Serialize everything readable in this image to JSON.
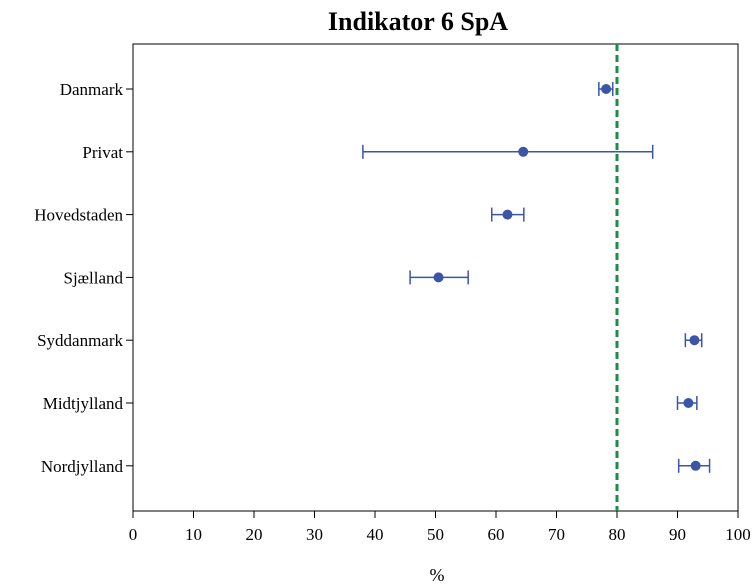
{
  "chart_data": {
    "type": "scatter",
    "title": "Indikator 6 SpA",
    "xlabel": "%",
    "ylabel": "",
    "xlim": [
      0,
      100
    ],
    "xticks": [
      "0",
      "10",
      "20",
      "30",
      "40",
      "50",
      "60",
      "70",
      "80",
      "90",
      "100"
    ],
    "reference_line": {
      "x": 80,
      "color": "#1e8c46",
      "style": "dashed"
    },
    "point_color": "#3b55a8",
    "grid": false,
    "categories": [
      "Danmark",
      "Privat",
      "Hovedstaden",
      "Sjælland",
      "Syddanmark",
      "Midtjylland",
      "Nordjylland"
    ],
    "values": [
      78.2,
      64.5,
      61.9,
      50.5,
      92.8,
      91.8,
      93.0
    ],
    "ci_low": [
      77.0,
      38.0,
      59.3,
      45.8,
      91.3,
      90.0,
      90.2
    ],
    "ci_high": [
      79.3,
      85.9,
      64.6,
      55.4,
      94.0,
      93.2,
      95.3
    ]
  }
}
